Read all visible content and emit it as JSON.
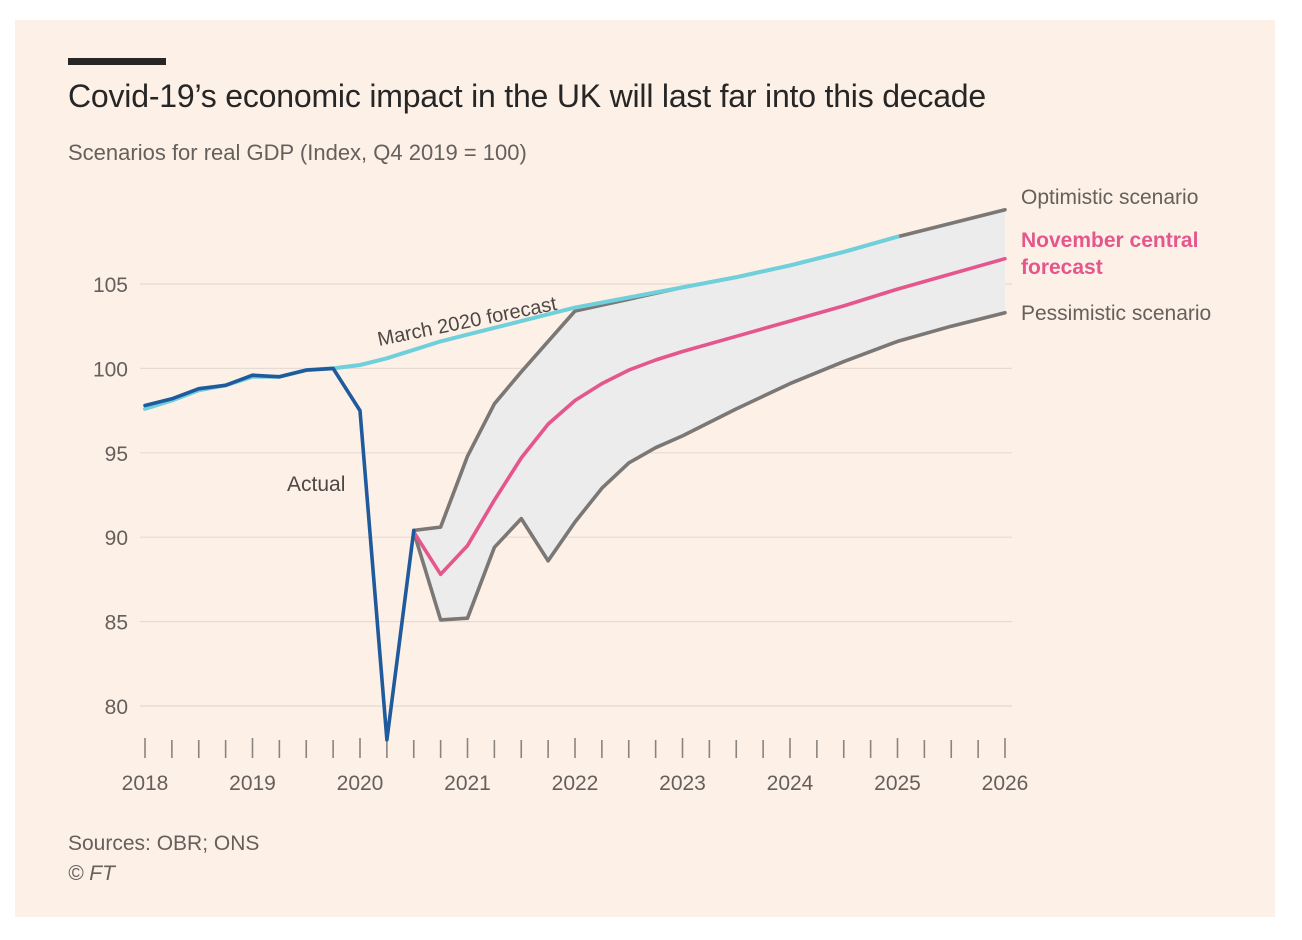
{
  "header": {
    "title": "Covid-19’s economic impact in the UK will last far into this decade",
    "subtitle": "Scenarios for real GDP (Index, Q4 2019 = 100)"
  },
  "footer": {
    "sources": "Sources: OBR; ONS",
    "copyright": "© FT"
  },
  "chart_data": {
    "type": "line",
    "title": "Covid-19’s economic impact in the UK will last far into this decade",
    "subtitle": "Scenarios for real GDP (Index, Q4 2019 = 100)",
    "xlabel": "",
    "ylabel": "",
    "xlim": [
      2018,
      2026
    ],
    "ylim": [
      78,
      108
    ],
    "x_ticks": [
      2018,
      2019,
      2020,
      2021,
      2022,
      2023,
      2024,
      2025,
      2026
    ],
    "y_ticks": [
      80,
      85,
      90,
      95,
      100,
      105
    ],
    "grid": true,
    "colors": {
      "actual": "#1f5a9c",
      "march": "#6fd0dc",
      "optimistic": "#7a7775",
      "pessimistic": "#7a7775",
      "central": "#e4568c",
      "band": "#ececec",
      "grid": "#e6dbd2",
      "tick_text": "#66605c",
      "label_text": "#4d4845"
    },
    "annotations": {
      "actual": "Actual",
      "march": "March 2020 forecast"
    },
    "series": [
      {
        "name": "Actual",
        "key": "actual",
        "x": [
          2018.0,
          2018.25,
          2018.5,
          2018.75,
          2019.0,
          2019.25,
          2019.5,
          2019.75,
          2020.0,
          2020.25,
          2020.5
        ],
        "values": [
          97.8,
          98.2,
          98.8,
          99.0,
          99.6,
          99.5,
          99.9,
          100.0,
          97.5,
          78.0,
          90.4
        ]
      },
      {
        "name": "March 2020 forecast",
        "key": "march",
        "x": [
          2018.0,
          2018.25,
          2018.5,
          2018.75,
          2019.0,
          2019.25,
          2019.5,
          2019.75,
          2020.0,
          2020.25,
          2020.5,
          2020.75,
          2021.0,
          2021.5,
          2022.0,
          2022.5,
          2023.0,
          2023.5,
          2024.0,
          2024.5,
          2025.0
        ],
        "values": [
          97.6,
          98.1,
          98.7,
          99.0,
          99.5,
          99.5,
          99.9,
          100.0,
          100.2,
          100.6,
          101.1,
          101.6,
          102.0,
          102.8,
          103.6,
          104.2,
          104.8,
          105.4,
          106.1,
          106.9,
          107.8
        ]
      },
      {
        "name": "Optimistic scenario",
        "key": "optimistic",
        "x": [
          2020.5,
          2020.75,
          2021.0,
          2021.25,
          2021.5,
          2021.75,
          2022.0,
          2022.5,
          2023.0,
          2023.5,
          2024.0,
          2024.5,
          2025.0,
          2025.5,
          2026.0
        ],
        "values": [
          90.4,
          90.6,
          94.8,
          97.9,
          99.8,
          101.6,
          103.4,
          104.1,
          104.8,
          105.4,
          106.1,
          106.9,
          107.8,
          108.6,
          109.4
        ]
      },
      {
        "name": "November central forecast",
        "key": "central",
        "x": [
          2020.5,
          2020.75,
          2021.0,
          2021.25,
          2021.5,
          2021.75,
          2022.0,
          2022.25,
          2022.5,
          2022.75,
          2023.0,
          2023.5,
          2024.0,
          2024.5,
          2025.0,
          2025.5,
          2026.0
        ],
        "values": [
          90.3,
          87.8,
          89.5,
          92.2,
          94.7,
          96.7,
          98.1,
          99.1,
          99.9,
          100.5,
          101.0,
          101.9,
          102.8,
          103.7,
          104.7,
          105.6,
          106.5
        ]
      },
      {
        "name": "Pessimistic scenario",
        "key": "pessimistic",
        "x": [
          2020.5,
          2020.75,
          2021.0,
          2021.25,
          2021.5,
          2021.75,
          2022.0,
          2022.25,
          2022.5,
          2022.75,
          2023.0,
          2023.5,
          2024.0,
          2024.5,
          2025.0,
          2025.5,
          2026.0
        ],
        "values": [
          90.3,
          85.1,
          85.2,
          89.4,
          91.1,
          88.6,
          90.9,
          92.9,
          94.4,
          95.3,
          96.0,
          97.6,
          99.1,
          100.4,
          101.6,
          102.5,
          103.3
        ]
      }
    ],
    "end_labels": [
      {
        "series": "optimistic",
        "lines": [
          "Optimistic scenario"
        ],
        "color": "#66605c"
      },
      {
        "series": "central",
        "lines": [
          "November central",
          "forecast"
        ],
        "color": "#e4568c"
      },
      {
        "series": "pessimistic",
        "lines": [
          "Pessimistic scenario"
        ],
        "color": "#66605c"
      }
    ]
  }
}
